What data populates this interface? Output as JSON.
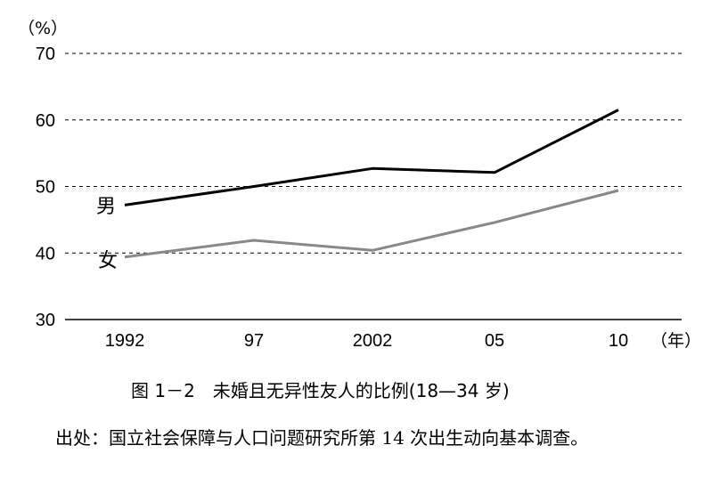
{
  "chart_data": {
    "type": "line",
    "x": [
      "1992",
      "97",
      "2002",
      "05",
      "10"
    ],
    "x_unit": "（年）",
    "y_unit": "（%）",
    "ylim": [
      30,
      70
    ],
    "yticks": [
      30,
      40,
      50,
      60,
      70
    ],
    "grid": "dashed horizontal",
    "series": [
      {
        "name": "男",
        "color": "#000000",
        "values": [
          47.2,
          50.0,
          52.7,
          52.1,
          61.5
        ]
      },
      {
        "name": "女",
        "color": "#888888",
        "values": [
          39.4,
          41.9,
          40.4,
          44.6,
          49.4
        ]
      }
    ]
  },
  "caption": "图 1－2　未婚且无异性友人的比例(18—34 岁)",
  "source": "出处：国立社会保障与人口问题研究所第 14 次出生动向基本调查。"
}
